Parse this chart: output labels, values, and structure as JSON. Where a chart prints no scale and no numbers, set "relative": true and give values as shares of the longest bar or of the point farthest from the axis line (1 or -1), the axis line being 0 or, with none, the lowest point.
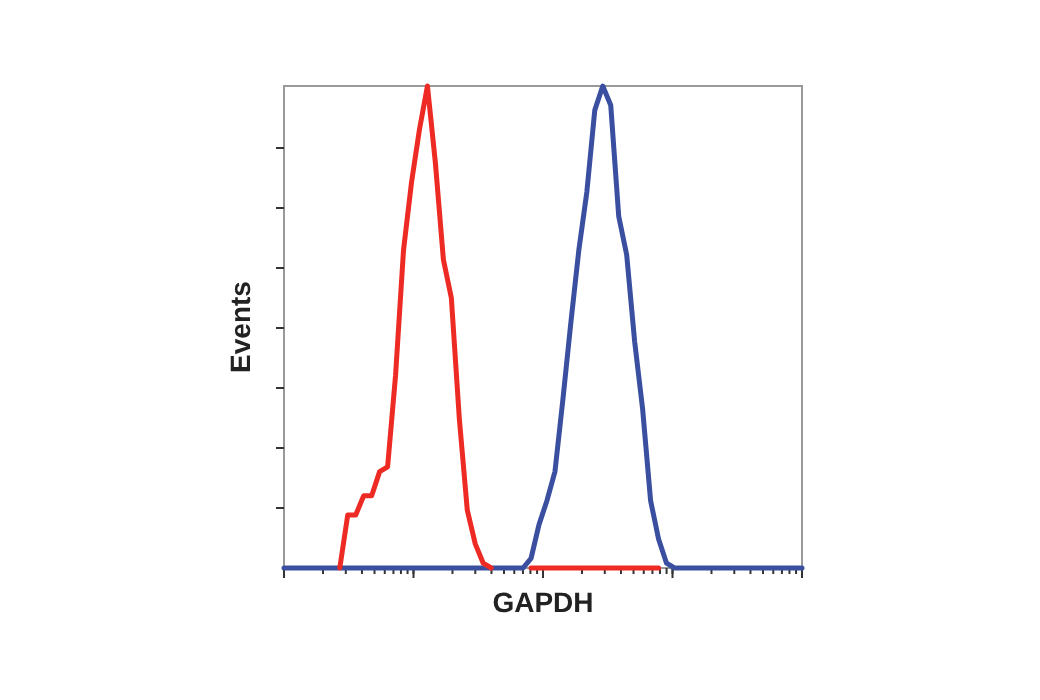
{
  "chart_data": {
    "type": "line",
    "xlabel": "GAPDH",
    "ylabel": "Events",
    "relative": true,
    "grid": false,
    "marker": "none",
    "line_style": "solid",
    "categories": [
      null,
      null,
      null,
      null,
      null,
      null,
      null,
      null,
      null,
      null,
      null,
      null,
      null,
      null,
      null,
      null,
      null,
      null,
      null,
      null,
      null,
      null,
      null,
      null,
      null,
      null,
      null,
      null,
      null,
      null,
      null,
      null,
      null,
      null,
      null,
      null,
      null,
      null,
      null,
      null,
      null,
      null,
      null,
      null,
      null,
      null,
      null,
      null,
      null,
      null,
      null,
      null,
      null,
      null,
      null,
      null,
      null,
      null,
      null,
      null,
      null,
      null,
      null,
      null,
      null,
      null
    ],
    "series": [
      {
        "color": "#3a4fa0",
        "values": [
          0,
          0,
          0,
          0,
          0,
          0,
          0,
          0,
          0,
          0,
          0,
          0,
          0,
          0,
          0,
          0,
          0,
          0,
          0,
          0,
          0,
          0,
          0,
          0,
          0,
          0,
          0,
          0,
          0,
          0,
          0,
          0.02,
          0.09,
          0.14,
          0.2,
          0.35,
          0.51,
          0.66,
          0.78,
          0.95,
          1.0,
          0.96,
          0.73,
          0.65,
          0.47,
          0.33,
          0.14,
          0.06,
          0.01,
          0,
          0,
          0,
          0,
          0,
          0,
          0,
          0,
          0,
          0,
          0,
          0,
          0,
          0,
          0,
          0,
          0
        ]
      },
      {
        "color": "#ee2a24",
        "values": [
          null,
          null,
          null,
          null,
          null,
          null,
          null,
          0,
          0.11,
          0.11,
          0.15,
          0.15,
          0.2,
          0.21,
          0.4,
          0.66,
          0.8,
          0.91,
          1.0,
          0.84,
          0.64,
          0.56,
          0.31,
          0.12,
          0.05,
          0.01,
          0,
          null,
          null,
          null,
          null,
          0,
          0,
          0,
          0,
          0,
          0,
          0,
          0,
          0,
          0,
          0,
          0,
          0,
          0,
          0,
          0,
          0,
          null,
          null,
          null,
          null,
          null,
          null,
          null,
          null,
          null,
          null,
          null,
          null,
          null,
          null,
          null,
          null,
          null,
          null
        ]
      }
    ]
  }
}
